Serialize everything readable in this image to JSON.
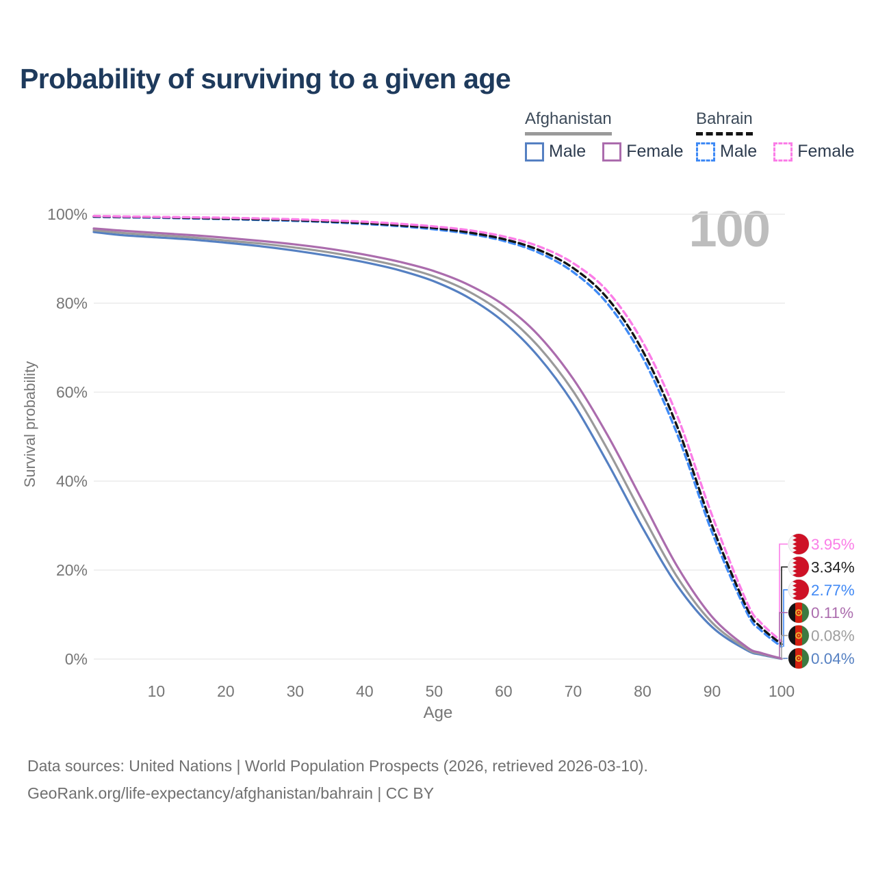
{
  "title": "Probability of surviving to a given age",
  "watermark_label": "100",
  "legend": {
    "groups": [
      {
        "country": "Afghanistan",
        "line_style": "solid",
        "underline_color": "#9a9a9a",
        "items": [
          {
            "label": "Male",
            "color": "#5580c2"
          },
          {
            "label": "Female",
            "color": "#ab6cad"
          }
        ]
      },
      {
        "country": "Bahrain",
        "line_style": "dashed",
        "underline_color": "#141414",
        "items": [
          {
            "label": "Male",
            "color": "#3f8af5"
          },
          {
            "label": "Female",
            "color": "#fb7de7"
          }
        ]
      }
    ]
  },
  "axes": {
    "y_title": "Survival probability",
    "x_title": "Age",
    "y_tick_labels": [
      "0%",
      "20%",
      "40%",
      "60%",
      "80%",
      "100%"
    ],
    "x_tick_labels": [
      "10",
      "20",
      "30",
      "40",
      "50",
      "60",
      "70",
      "80",
      "90",
      "100"
    ]
  },
  "chart_data": {
    "type": "line",
    "title": "Probability of surviving to a given age",
    "xlabel": "Age",
    "ylabel": "Survival probability",
    "xlim": [
      1,
      100
    ],
    "ylim": [
      0,
      100
    ],
    "y_unit": "%",
    "grid": "horizontal",
    "legend_position": "top-right",
    "x_ticks": [
      10,
      20,
      30,
      40,
      50,
      60,
      70,
      80,
      90,
      100
    ],
    "y_ticks": [
      0,
      20,
      40,
      60,
      80,
      100
    ],
    "series": [
      {
        "name": "Afghanistan Male",
        "country": "Afghanistan",
        "sex": "Male",
        "color": "#5580c2",
        "dash": "solid",
        "end_label": "0.04%",
        "points": [
          [
            1,
            96.0
          ],
          [
            5,
            95.3
          ],
          [
            10,
            94.8
          ],
          [
            15,
            94.3
          ],
          [
            20,
            93.6
          ],
          [
            25,
            92.8
          ],
          [
            30,
            91.8
          ],
          [
            35,
            90.6
          ],
          [
            40,
            89.2
          ],
          [
            45,
            87.4
          ],
          [
            50,
            84.9
          ],
          [
            55,
            81.2
          ],
          [
            60,
            75.8
          ],
          [
            65,
            68.0
          ],
          [
            70,
            57.5
          ],
          [
            75,
            44.0
          ],
          [
            80,
            29.5
          ],
          [
            85,
            16.5
          ],
          [
            90,
            7.2
          ],
          [
            95,
            2.0
          ],
          [
            97,
            1.0
          ],
          [
            100,
            0.04
          ]
        ]
      },
      {
        "name": "Afghanistan Both sexes",
        "country": "Afghanistan",
        "sex": "Both",
        "color": "#9a9a9a",
        "dash": "solid",
        "end_label": "0.08%",
        "points": [
          [
            1,
            96.4
          ],
          [
            5,
            95.8
          ],
          [
            10,
            95.3
          ],
          [
            15,
            94.8
          ],
          [
            20,
            94.1
          ],
          [
            25,
            93.4
          ],
          [
            30,
            92.5
          ],
          [
            35,
            91.4
          ],
          [
            40,
            90.0
          ],
          [
            45,
            88.3
          ],
          [
            50,
            86.0
          ],
          [
            55,
            82.6
          ],
          [
            60,
            77.6
          ],
          [
            65,
            70.3
          ],
          [
            70,
            60.2
          ],
          [
            75,
            47.0
          ],
          [
            80,
            32.3
          ],
          [
            85,
            18.4
          ],
          [
            90,
            8.2
          ],
          [
            95,
            2.3
          ],
          [
            97,
            1.2
          ],
          [
            100,
            0.08
          ]
        ]
      },
      {
        "name": "Afghanistan Female",
        "country": "Afghanistan",
        "sex": "Female",
        "color": "#ab6cad",
        "dash": "solid",
        "end_label": "0.11%",
        "points": [
          [
            1,
            96.8
          ],
          [
            5,
            96.3
          ],
          [
            10,
            95.8
          ],
          [
            15,
            95.3
          ],
          [
            20,
            94.7
          ],
          [
            25,
            94.0
          ],
          [
            30,
            93.2
          ],
          [
            35,
            92.2
          ],
          [
            40,
            90.9
          ],
          [
            45,
            89.3
          ],
          [
            50,
            87.2
          ],
          [
            55,
            84.1
          ],
          [
            60,
            79.6
          ],
          [
            65,
            72.8
          ],
          [
            70,
            63.0
          ],
          [
            75,
            50.2
          ],
          [
            80,
            35.5
          ],
          [
            85,
            20.8
          ],
          [
            90,
            9.5
          ],
          [
            95,
            2.7
          ],
          [
            97,
            1.4
          ],
          [
            100,
            0.11
          ]
        ]
      },
      {
        "name": "Bahrain Male",
        "country": "Bahrain",
        "sex": "Male",
        "color": "#3f8af5",
        "dash": "dashed",
        "end_label": "2.77%",
        "points": [
          [
            1,
            99.4
          ],
          [
            5,
            99.3
          ],
          [
            10,
            99.2
          ],
          [
            15,
            99.05
          ],
          [
            20,
            98.9
          ],
          [
            25,
            98.7
          ],
          [
            30,
            98.5
          ],
          [
            35,
            98.2
          ],
          [
            40,
            97.8
          ],
          [
            45,
            97.3
          ],
          [
            50,
            96.6
          ],
          [
            55,
            95.6
          ],
          [
            60,
            94.0
          ],
          [
            65,
            91.4
          ],
          [
            70,
            87.0
          ],
          [
            75,
            79.8
          ],
          [
            80,
            67.8
          ],
          [
            85,
            50.5
          ],
          [
            90,
            28.5
          ],
          [
            95,
            10.5
          ],
          [
            97,
            6.5
          ],
          [
            100,
            2.77
          ]
        ]
      },
      {
        "name": "Bahrain Both sexes",
        "country": "Bahrain",
        "sex": "Both",
        "color": "#141414",
        "dash": "dashed",
        "end_label": "3.34%",
        "points": [
          [
            1,
            99.5
          ],
          [
            5,
            99.4
          ],
          [
            10,
            99.3
          ],
          [
            15,
            99.15
          ],
          [
            20,
            99.0
          ],
          [
            25,
            98.85
          ],
          [
            30,
            98.65
          ],
          [
            35,
            98.35
          ],
          [
            40,
            98.0
          ],
          [
            45,
            97.5
          ],
          [
            50,
            96.9
          ],
          [
            55,
            95.9
          ],
          [
            60,
            94.4
          ],
          [
            65,
            92.0
          ],
          [
            70,
            87.9
          ],
          [
            75,
            81.0
          ],
          [
            80,
            69.3
          ],
          [
            85,
            52.2
          ],
          [
            90,
            30.0
          ],
          [
            95,
            11.5
          ],
          [
            97,
            7.2
          ],
          [
            100,
            3.34
          ]
        ]
      },
      {
        "name": "Bahrain Female",
        "country": "Bahrain",
        "sex": "Female",
        "color": "#fb7de7",
        "dash": "dashed",
        "end_label": "3.95%",
        "points": [
          [
            1,
            99.6
          ],
          [
            5,
            99.5
          ],
          [
            10,
            99.4
          ],
          [
            15,
            99.3
          ],
          [
            20,
            99.2
          ],
          [
            25,
            99.05
          ],
          [
            30,
            98.85
          ],
          [
            35,
            98.6
          ],
          [
            40,
            98.3
          ],
          [
            45,
            97.85
          ],
          [
            50,
            97.25
          ],
          [
            55,
            96.4
          ],
          [
            60,
            95.0
          ],
          [
            65,
            92.8
          ],
          [
            70,
            89.0
          ],
          [
            75,
            82.6
          ],
          [
            80,
            71.3
          ],
          [
            85,
            54.6
          ],
          [
            90,
            32.3
          ],
          [
            95,
            12.8
          ],
          [
            97,
            8.2
          ],
          [
            100,
            3.95
          ]
        ]
      }
    ]
  },
  "end_labels": [
    {
      "value": "3.95%",
      "numeric": 3.95,
      "color": "#fb7de7",
      "flag": "bahrain"
    },
    {
      "value": "3.34%",
      "numeric": 3.34,
      "color": "#1f1f1f",
      "flag": "bahrain"
    },
    {
      "value": "2.77%",
      "numeric": 2.77,
      "color": "#4089f5",
      "flag": "bahrain"
    },
    {
      "value": "0.11%",
      "numeric": 0.11,
      "color": "#ab6cad",
      "flag": "afghanistan"
    },
    {
      "value": "0.08%",
      "numeric": 0.08,
      "color": "#9e9e9e",
      "flag": "afghanistan"
    },
    {
      "value": "0.04%",
      "numeric": 0.04,
      "color": "#5580c2",
      "flag": "afghanistan"
    }
  ],
  "footer": {
    "line1": "Data sources: United Nations | World Population Prospects (2026, retrieved 2026-03-10).",
    "line2": "GeoRank.org/life-expectancy/afghanistan/bahrain | CC BY"
  }
}
